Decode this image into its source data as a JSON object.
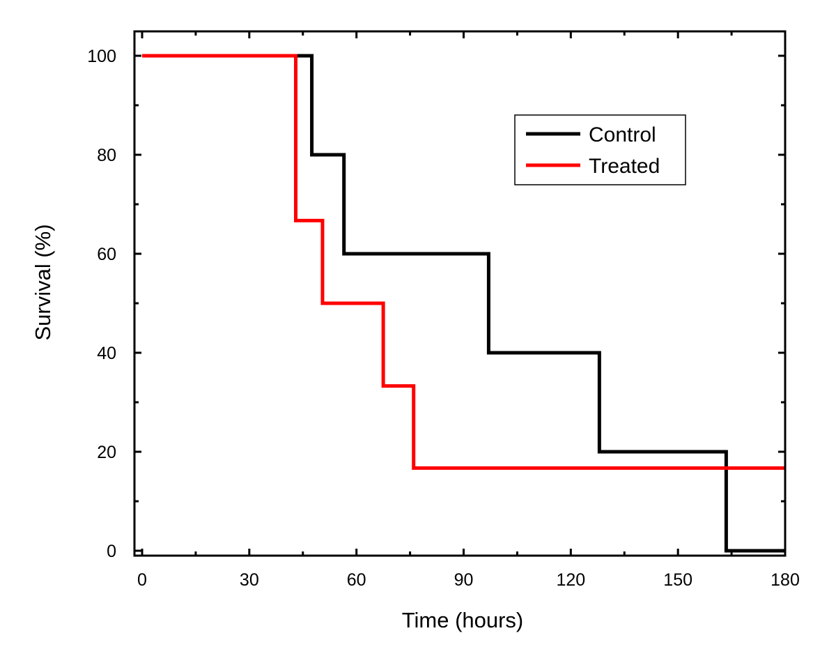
{
  "chart_data": {
    "type": "line",
    "step": true,
    "title": "",
    "xlabel": "Time (hours)",
    "ylabel": "Survival (%)",
    "xlim": [
      0,
      180
    ],
    "ylim": [
      0,
      100
    ],
    "xticks": [
      0,
      30,
      60,
      90,
      120,
      150,
      180
    ],
    "yticks": [
      0,
      20,
      40,
      60,
      80,
      100
    ],
    "xtick_labels": [
      "0",
      "30",
      "60",
      "90",
      "120",
      "150",
      "180"
    ],
    "ytick_labels": [
      "0",
      "20",
      "40",
      "60",
      "80",
      "100"
    ],
    "grid": false,
    "legend_position": "top-right",
    "series": [
      {
        "name": "Control",
        "color": "#000000",
        "x": [
          0,
          47.5,
          56.5,
          97,
          128,
          163.5,
          180
        ],
        "y": [
          100,
          80,
          60,
          40,
          20,
          0,
          0
        ]
      },
      {
        "name": "Treated",
        "color": "#ff0000",
        "x": [
          0,
          43,
          50.5,
          67.5,
          76,
          180
        ],
        "y": [
          100,
          66.7,
          50,
          33.3,
          16.7,
          16.7
        ]
      }
    ]
  }
}
